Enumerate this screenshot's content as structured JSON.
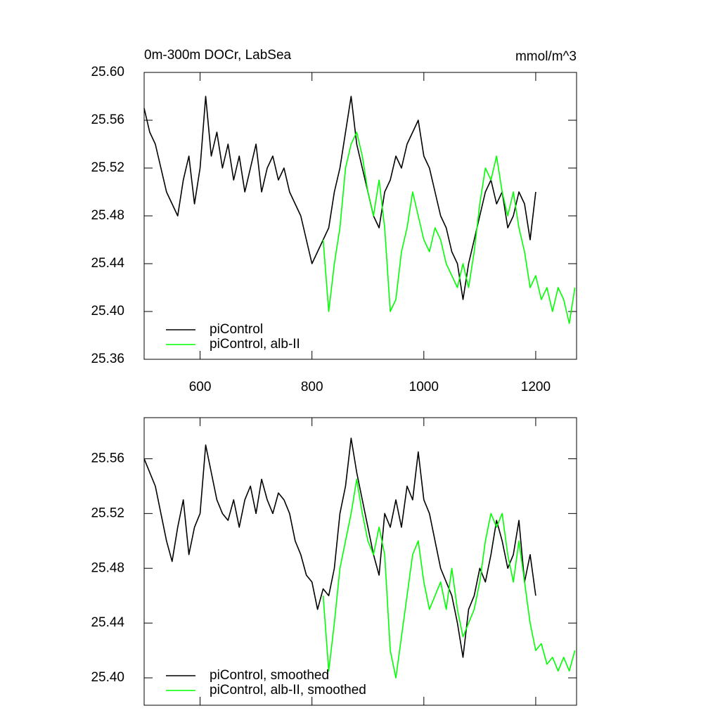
{
  "chart_data": [
    {
      "type": "line",
      "title": "0m-300m DOCr, LabSea",
      "units_label": "mmol/m^3",
      "xlim": [
        500,
        1273
      ],
      "xticks": [
        600,
        800,
        1000,
        1200
      ],
      "ylim": [
        25.36,
        25.6
      ],
      "yticks": [
        25.36,
        {
          "value": 25.4,
          "label": "25.40"
        },
        25.44,
        {
          "value": 25.48,
          "label": "25.48"
        },
        25.52,
        25.56,
        {
          "value": 25.6,
          "label": "25.60"
        }
      ],
      "legend": "lower left",
      "series": [
        {
          "name": "piControl",
          "color": "#000000",
          "x": [
            500,
            510,
            520,
            530,
            540,
            550,
            560,
            570,
            580,
            590,
            600,
            610,
            620,
            630,
            640,
            650,
            660,
            670,
            680,
            690,
            700,
            710,
            720,
            730,
            740,
            750,
            760,
            770,
            780,
            790,
            800,
            810,
            820,
            830,
            840,
            850,
            860,
            870,
            880,
            890,
            900,
            910,
            920,
            930,
            940,
            950,
            960,
            970,
            980,
            990,
            1000,
            1010,
            1020,
            1030,
            1040,
            1050,
            1060,
            1070,
            1080,
            1090,
            1100,
            1110,
            1120,
            1130,
            1140,
            1150,
            1160,
            1170,
            1180,
            1190,
            1200
          ],
          "values": [
            25.57,
            25.55,
            25.54,
            25.52,
            25.5,
            25.49,
            25.48,
            25.51,
            25.53,
            25.49,
            25.52,
            25.58,
            25.53,
            25.55,
            25.52,
            25.54,
            25.51,
            25.53,
            25.5,
            25.52,
            25.54,
            25.5,
            25.52,
            25.53,
            25.51,
            25.52,
            25.5,
            25.49,
            25.48,
            25.46,
            25.44,
            25.45,
            25.46,
            25.47,
            25.5,
            25.52,
            25.55,
            25.58,
            25.54,
            25.52,
            25.5,
            25.48,
            25.47,
            25.5,
            25.51,
            25.53,
            25.52,
            25.54,
            25.55,
            25.56,
            25.53,
            25.52,
            25.5,
            25.48,
            25.47,
            25.45,
            25.44,
            25.41,
            25.44,
            25.46,
            25.48,
            25.5,
            25.51,
            25.49,
            25.5,
            25.47,
            25.48,
            25.5,
            25.49,
            25.46,
            25.5
          ]
        },
        {
          "name": "piControl, alb-II",
          "color": "#00ff00",
          "x": [
            820,
            830,
            840,
            850,
            860,
            870,
            880,
            890,
            900,
            910,
            920,
            930,
            940,
            950,
            960,
            970,
            980,
            990,
            1000,
            1010,
            1020,
            1030,
            1040,
            1050,
            1060,
            1070,
            1080,
            1090,
            1100,
            1110,
            1120,
            1130,
            1140,
            1150,
            1160,
            1170,
            1180,
            1190,
            1200,
            1210,
            1220,
            1230,
            1240,
            1250,
            1260,
            1270
          ],
          "values": [
            25.46,
            25.4,
            25.44,
            25.47,
            25.52,
            25.54,
            25.55,
            25.53,
            25.5,
            25.48,
            25.51,
            25.47,
            25.4,
            25.41,
            25.45,
            25.47,
            25.5,
            25.48,
            25.46,
            25.45,
            25.47,
            25.46,
            25.44,
            25.43,
            25.42,
            25.44,
            25.42,
            25.45,
            25.49,
            25.52,
            25.51,
            25.53,
            25.5,
            25.48,
            25.5,
            25.47,
            25.45,
            25.42,
            25.43,
            25.41,
            25.42,
            25.4,
            25.42,
            25.41,
            25.39,
            25.42
          ]
        }
      ]
    },
    {
      "type": "line",
      "xlim": [
        500,
        1273
      ],
      "xticks": [
        600,
        800,
        1000,
        1200
      ],
      "ylim": [
        25.38,
        25.59
      ],
      "yticks": [
        {
          "value": 25.4,
          "label": "25.40"
        },
        25.44,
        {
          "value": 25.48,
          "label": "25.48"
        },
        25.52,
        25.56
      ],
      "legend": "lower left",
      "series": [
        {
          "name": "piControl, smoothed",
          "color": "#000000",
          "x": [
            500,
            510,
            520,
            530,
            540,
            550,
            560,
            570,
            580,
            590,
            600,
            610,
            620,
            630,
            640,
            650,
            660,
            670,
            680,
            690,
            700,
            710,
            720,
            730,
            740,
            750,
            760,
            770,
            780,
            790,
            800,
            810,
            820,
            830,
            840,
            850,
            860,
            870,
            880,
            890,
            900,
            910,
            920,
            930,
            940,
            950,
            960,
            970,
            980,
            990,
            1000,
            1010,
            1020,
            1030,
            1040,
            1050,
            1060,
            1070,
            1080,
            1090,
            1100,
            1110,
            1120,
            1130,
            1140,
            1150,
            1160,
            1170,
            1180,
            1190,
            1200
          ],
          "values": [
            25.56,
            25.55,
            25.54,
            25.52,
            25.5,
            25.485,
            25.51,
            25.53,
            25.49,
            25.51,
            25.52,
            25.57,
            25.55,
            25.53,
            25.52,
            25.515,
            25.53,
            25.51,
            25.53,
            25.54,
            25.52,
            25.545,
            25.53,
            25.52,
            25.535,
            25.53,
            25.52,
            25.5,
            25.49,
            25.475,
            25.47,
            25.45,
            25.465,
            25.46,
            25.48,
            25.52,
            25.54,
            25.575,
            25.55,
            25.53,
            25.51,
            25.49,
            25.475,
            25.52,
            25.51,
            25.53,
            25.51,
            25.54,
            25.53,
            25.565,
            25.53,
            25.52,
            25.5,
            25.48,
            25.47,
            25.46,
            25.44,
            25.415,
            25.45,
            25.46,
            25.48,
            25.47,
            25.49,
            25.515,
            25.5,
            25.48,
            25.49,
            25.515,
            25.47,
            25.49,
            25.46
          ]
        },
        {
          "name": "piControl, alb-II, smoothed",
          "color": "#00ff00",
          "x": [
            820,
            830,
            840,
            850,
            860,
            870,
            880,
            890,
            900,
            910,
            920,
            930,
            940,
            950,
            960,
            970,
            980,
            990,
            1000,
            1010,
            1020,
            1030,
            1040,
            1050,
            1060,
            1070,
            1080,
            1090,
            1100,
            1110,
            1120,
            1130,
            1140,
            1150,
            1160,
            1170,
            1180,
            1190,
            1200,
            1210,
            1220,
            1230,
            1240,
            1250,
            1260,
            1270
          ],
          "values": [
            25.46,
            25.405,
            25.44,
            25.48,
            25.5,
            25.52,
            25.545,
            25.52,
            25.5,
            25.49,
            25.51,
            25.49,
            25.42,
            25.4,
            25.43,
            25.46,
            25.49,
            25.5,
            25.47,
            25.45,
            25.46,
            25.47,
            25.45,
            25.48,
            25.45,
            25.43,
            25.44,
            25.45,
            25.47,
            25.5,
            25.52,
            25.51,
            25.52,
            25.49,
            25.47,
            25.5,
            25.47,
            25.44,
            25.42,
            25.425,
            25.41,
            25.415,
            25.405,
            25.415,
            25.405,
            25.42
          ]
        }
      ]
    }
  ]
}
